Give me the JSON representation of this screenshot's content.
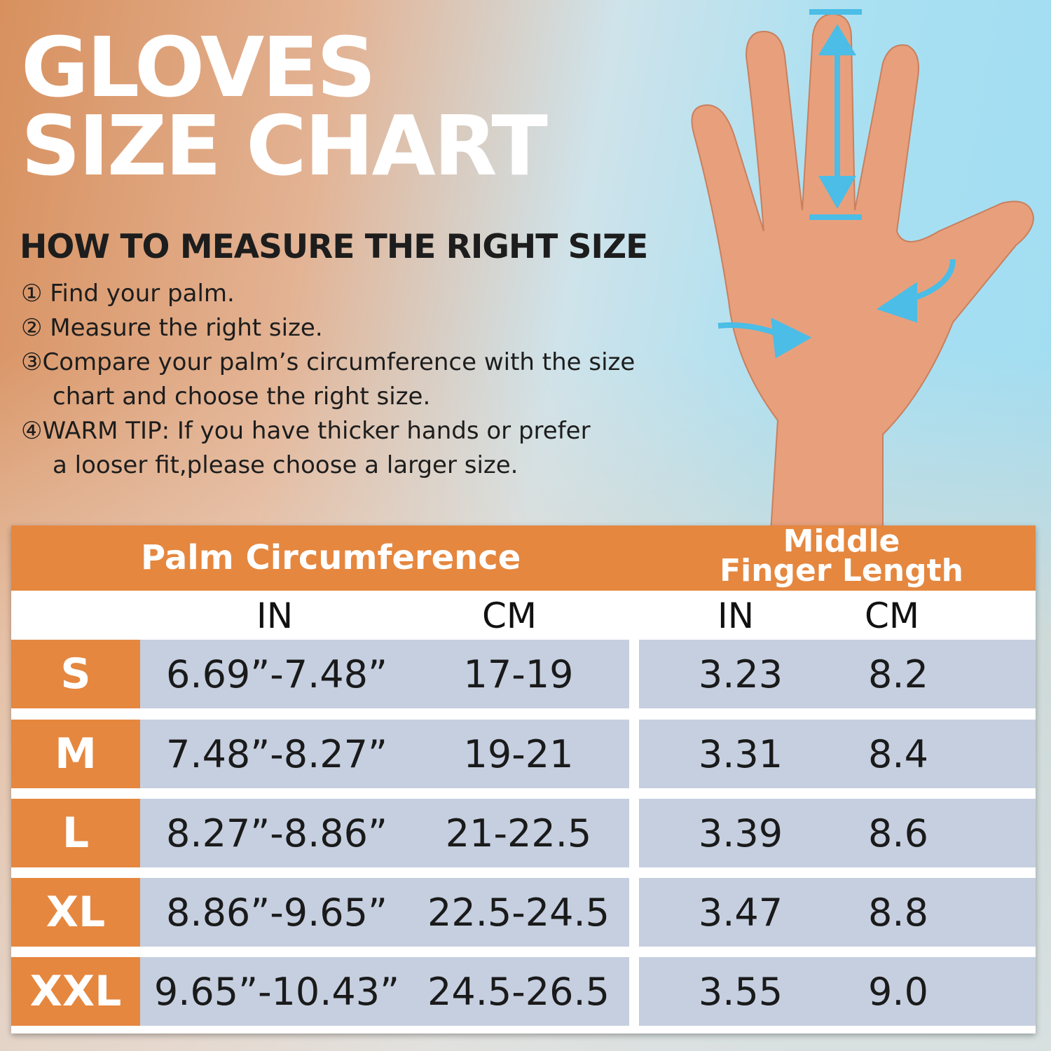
{
  "title": [
    "GLOVES",
    "SIZE CHART"
  ],
  "subtitle": "HOW TO MEASURE THE RIGHT SIZE",
  "steps": [
    {
      "num": "①",
      "text": "Find your palm."
    },
    {
      "num": "②",
      "text": "Measure the right size."
    },
    {
      "num": "③",
      "text": "Compare your palm’s circumference with the size",
      "cont": "chart and choose the right size."
    },
    {
      "num": "④",
      "text": "WARM TIP: If you have thicker hands or prefer",
      "cont": "a looser fit,please choose a larger size."
    }
  ],
  "colors": {
    "accent": "#e5873f",
    "row": "#c5cfe0",
    "arrow": "#4bbde6"
  },
  "table": {
    "palm_header": "Palm Circumference",
    "finger_header": [
      "Middle",
      "Finger Length"
    ],
    "units": [
      "IN",
      "CM",
      "IN",
      "CM"
    ],
    "rows": [
      {
        "size": "S",
        "palm_in": "6.69”-7.48”",
        "palm_cm": "17-19",
        "finger_in": "3.23",
        "finger_cm": "8.2"
      },
      {
        "size": "M",
        "palm_in": "7.48”-8.27”",
        "palm_cm": "19-21",
        "finger_in": "3.31",
        "finger_cm": "8.4"
      },
      {
        "size": "L",
        "palm_in": "8.27”-8.86”",
        "palm_cm": "21-22.5",
        "finger_in": "3.39",
        "finger_cm": "8.6"
      },
      {
        "size": "XL",
        "palm_in": "8.86”-9.65”",
        "palm_cm": "22.5-24.5",
        "finger_in": "3.47",
        "finger_cm": "8.8"
      },
      {
        "size": "XXL",
        "palm_in": "9.65”-10.43”",
        "palm_cm": "24.5-26.5",
        "finger_in": "3.55",
        "finger_cm": "9.0"
      }
    ]
  }
}
